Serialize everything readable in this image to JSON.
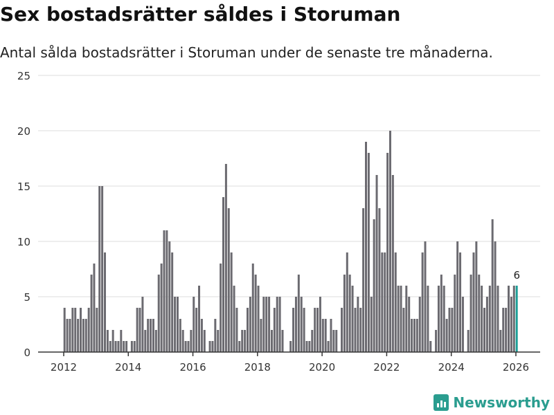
{
  "header": {
    "title": "Sex bostadsrätter såldes i Storuman",
    "subtitle": "Antal sålda bostadsrätter i Storuman under de senaste tre månaderna."
  },
  "brand": {
    "name": "Newsworthy",
    "color": "#2a9d8f"
  },
  "chart_data": {
    "type": "bar",
    "title": "Sex bostadsrätter såldes i Storuman",
    "xlabel": "",
    "ylabel": "",
    "ylim": [
      0,
      25
    ],
    "yticks": [
      0,
      5,
      10,
      15,
      20,
      25
    ],
    "xticks": [
      "2012",
      "2014",
      "2016",
      "2018",
      "2020",
      "2022",
      "2024",
      "2026"
    ],
    "start": "2012-01",
    "interval": "month",
    "bar_color": "#6b6a70",
    "highlight_color": "#1a9e96",
    "highlight_label": "6",
    "grid": true,
    "values": [
      4,
      3,
      3,
      4,
      4,
      3,
      4,
      3,
      3,
      4,
      7,
      8,
      4,
      15,
      15,
      9,
      2,
      1,
      2,
      1,
      1,
      2,
      1,
      1,
      0,
      1,
      1,
      4,
      4,
      5,
      2,
      3,
      3,
      3,
      2,
      7,
      8,
      11,
      11,
      10,
      9,
      5,
      5,
      3,
      2,
      1,
      1,
      2,
      5,
      4,
      6,
      3,
      2,
      0,
      1,
      1,
      3,
      2,
      8,
      14,
      17,
      13,
      9,
      6,
      4,
      1,
      2,
      2,
      4,
      5,
      8,
      7,
      6,
      3,
      5,
      5,
      5,
      2,
      4,
      5,
      5,
      2,
      0,
      0,
      1,
      4,
      5,
      7,
      5,
      4,
      1,
      1,
      2,
      4,
      4,
      5,
      3,
      3,
      1,
      3,
      2,
      2,
      0,
      4,
      7,
      9,
      7,
      6,
      4,
      5,
      4,
      13,
      19,
      18,
      5,
      12,
      16,
      13,
      9,
      9,
      18,
      20,
      16,
      9,
      6,
      6,
      4,
      6,
      5,
      3,
      3,
      3,
      5,
      9,
      10,
      6,
      1,
      0,
      2,
      6,
      7,
      6,
      3,
      4,
      4,
      7,
      10,
      9,
      5,
      0,
      2,
      7,
      9,
      10,
      7,
      6,
      4,
      5,
      6,
      12,
      10,
      6,
      2,
      4,
      4,
      6,
      5,
      6,
      6
    ]
  }
}
